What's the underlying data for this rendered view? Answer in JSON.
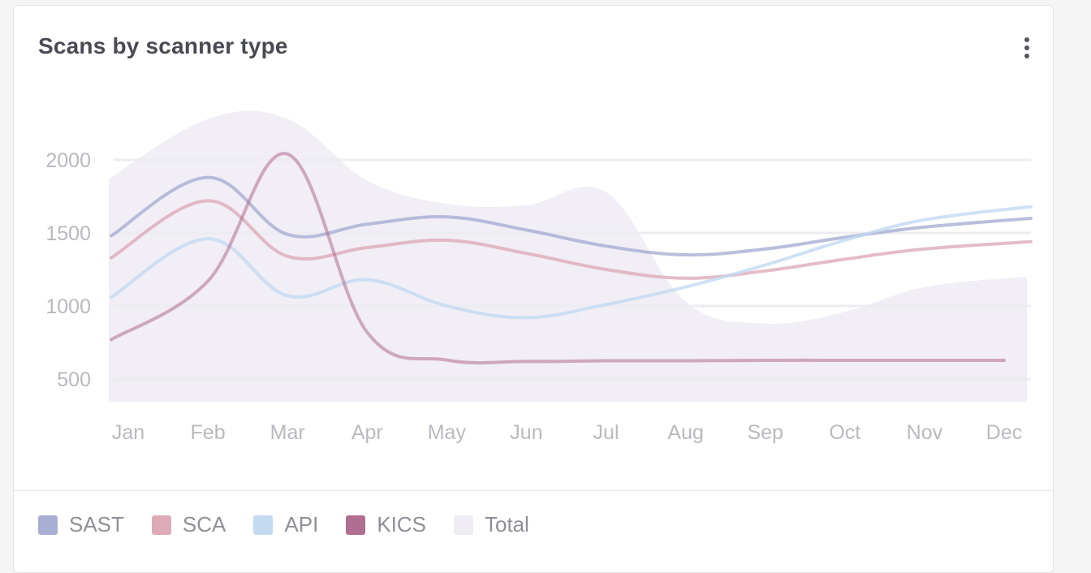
{
  "card": {
    "title": "Scans by scanner type",
    "menu_icon": "more-vertical-icon"
  },
  "colors": {
    "SAST": "#a9aed3",
    "SCA": "#ddabb8",
    "API": "#c3daf1",
    "KICS": "#b06e90",
    "Total": "#efecf4"
  },
  "legend": [
    {
      "name": "SAST"
    },
    {
      "name": "SCA"
    },
    {
      "name": "API"
    },
    {
      "name": "KICS"
    },
    {
      "name": "Total"
    }
  ],
  "chart_data": {
    "type": "line",
    "title": "Scans by scanner type",
    "categories": [
      "Jan",
      "Feb",
      "Mar",
      "Apr",
      "May",
      "Jun",
      "Jul",
      "Aug",
      "Sep",
      "Oct",
      "Nov",
      "Dec"
    ],
    "yticks": [
      500,
      1000,
      1500,
      2000
    ],
    "ylim": [
      350,
      2350
    ],
    "grid": true,
    "legend_position": "bottom",
    "series": [
      {
        "name": "SAST",
        "values": [
          1480,
          1880,
          1490,
          1560,
          1610,
          1520,
          1410,
          1350,
          1390,
          1470,
          1540,
          1600
        ]
      },
      {
        "name": "SCA",
        "values": [
          1330,
          1720,
          1340,
          1400,
          1450,
          1360,
          1250,
          1190,
          1240,
          1320,
          1390,
          1440
        ]
      },
      {
        "name": "API",
        "values": [
          1060,
          1460,
          1070,
          1180,
          1000,
          920,
          1010,
          1130,
          1280,
          1450,
          1590,
          1680
        ]
      },
      {
        "name": "KICS",
        "values": [
          770,
          1170,
          2040,
          820,
          630,
          620,
          625,
          625,
          628,
          628,
          628,
          628
        ]
      },
      {
        "name": "Total",
        "type": "area",
        "values": [
          1870,
          2280,
          2280,
          1860,
          1700,
          1690,
          1780,
          1030,
          880,
          960,
          1130,
          1200
        ]
      }
    ]
  }
}
